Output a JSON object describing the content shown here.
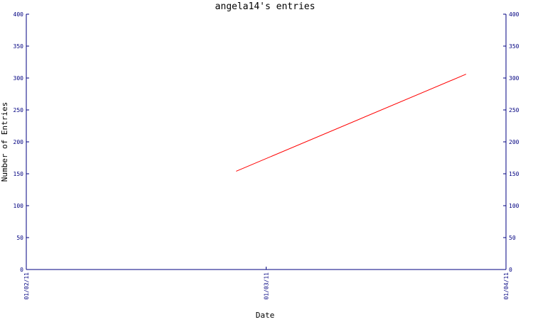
{
  "chart_data": {
    "type": "line",
    "title": "angela14's entries",
    "xlabel": "Date",
    "ylabel": "Number of Entries",
    "x_ticks": [
      "01/02/11",
      "01/03/11",
      "01/04/11"
    ],
    "y_ticks": [
      0,
      50,
      100,
      150,
      200,
      250,
      300,
      350,
      400
    ],
    "ylim": [
      0,
      400
    ],
    "xlim": [
      "2011-01-02",
      "2011-01-04"
    ],
    "grid": false,
    "right_axis": true,
    "series": [
      {
        "color": "#ff0000",
        "points": [
          {
            "x": "2011-01-02T21:00",
            "y": 154
          },
          {
            "x": "2011-01-03T20:00",
            "y": 306
          }
        ]
      }
    ]
  },
  "colors": {
    "axis": "#000080",
    "text": "#000080",
    "line": "#ff0000"
  }
}
